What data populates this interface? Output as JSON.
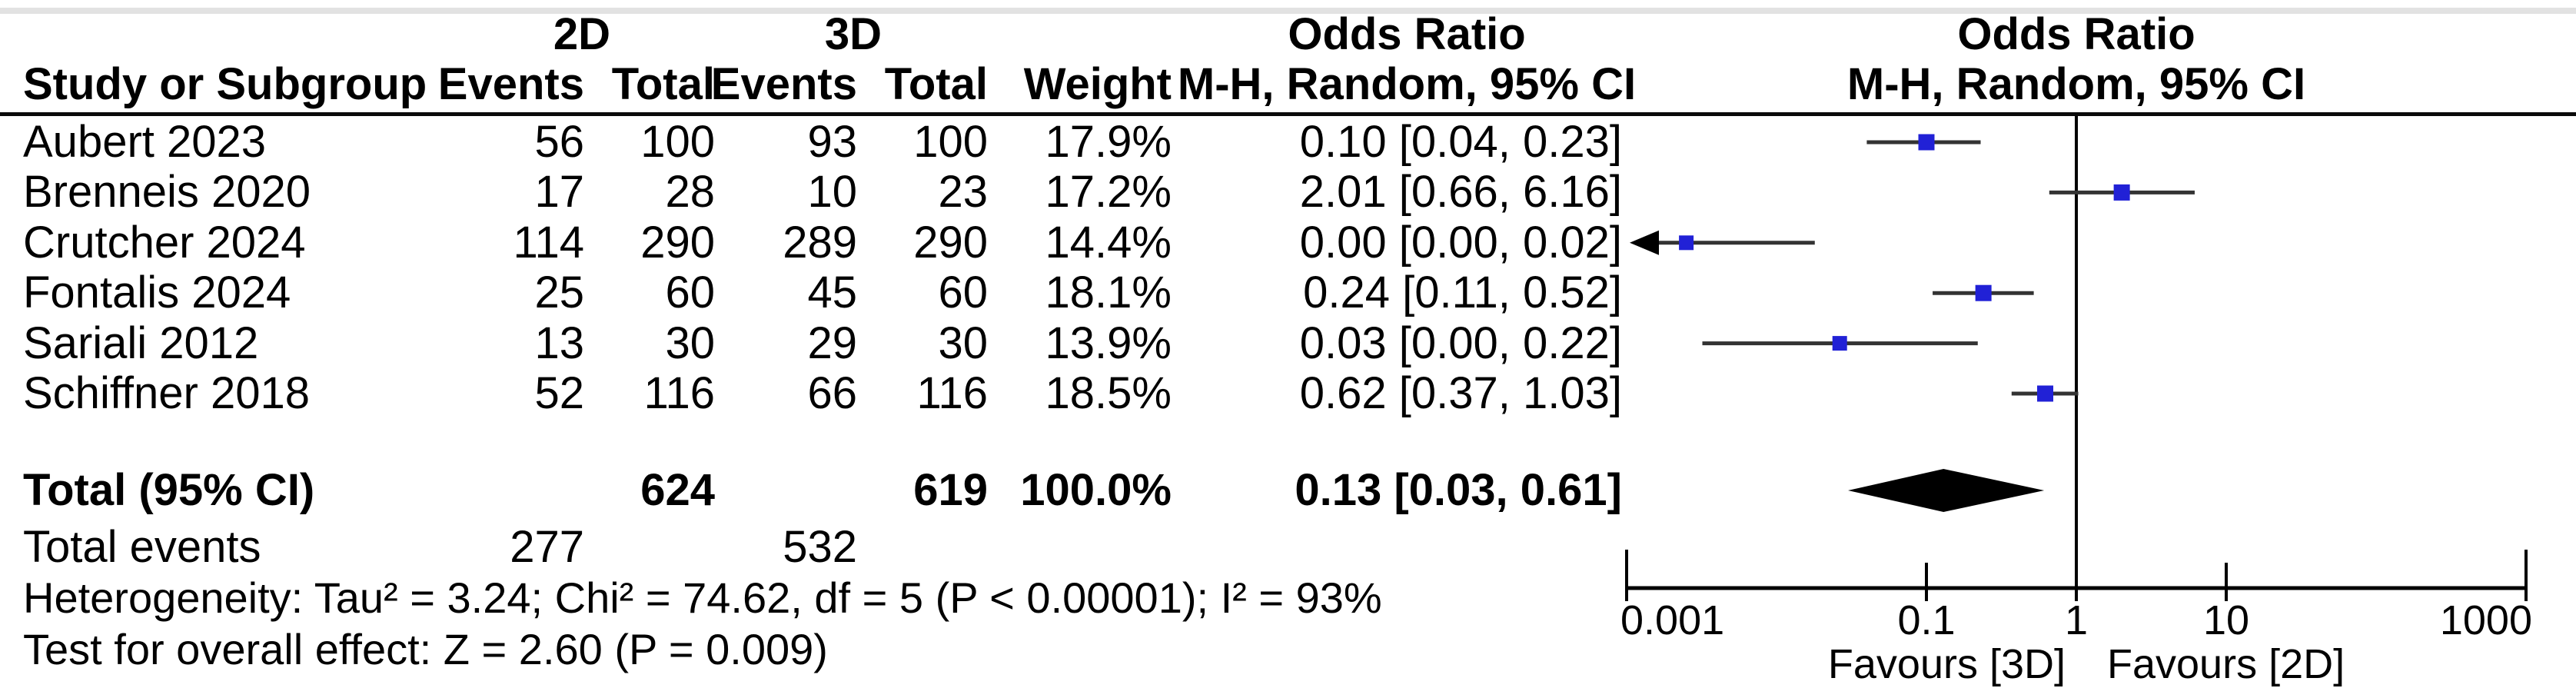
{
  "figure": {
    "headers": {
      "group_2d": "2D",
      "group_3d": "3D",
      "or_text_col_title": "Odds Ratio",
      "or_plot_col_title": "Odds Ratio",
      "study_col": "Study or Subgroup",
      "events_2d_col": "Events",
      "total_2d_col": "Total",
      "events_3d_col": "Events",
      "total_3d_col": "Total",
      "weight_col": "Weight",
      "or_text_method": "M-H, Random, 95% CI",
      "or_plot_method": "M-H, Random, 95% CI"
    },
    "totals": {
      "label": "Total (95% CI)",
      "total_2d": "624",
      "total_3d": "619",
      "weight": "100.0%",
      "or_ci_text": "0.13 [0.03, 0.61]",
      "events_label": "Total events",
      "events_2d": "277",
      "events_3d": "532"
    },
    "footer": {
      "heterogeneity": "Heterogeneity: Tau² = 3.24; Chi² = 74.62, df = 5 (P < 0.00001); I² = 93%",
      "overall_effect": "Test for overall effect: Z = 2.60 (P = 0.009)"
    }
  },
  "chart_data": {
    "type": "forest_plot",
    "effect_measure": "Odds Ratio",
    "method": "M-H, Random, 95% CI",
    "x_scale": "log",
    "axis": {
      "min": 0.001,
      "max": 1000,
      "ticks": [
        0.001,
        0.1,
        1,
        10,
        1000
      ],
      "tick_labels": [
        "0.001",
        "0.1",
        "1",
        "10",
        "1000"
      ],
      "null_line": 1,
      "favours_left": "Favours [3D]",
      "favours_right": "Favours [2D]"
    },
    "studies": [
      {
        "name": "Aubert 2023",
        "events_2d": "56",
        "total_2d": "100",
        "events_3d": "93",
        "total_3d": "100",
        "weight_pct": 17.9,
        "weight_text": "17.9%",
        "or_ci_text": "0.10 [0.04, 0.23]",
        "point": 0.1,
        "ci_low": 0.04,
        "ci_high": 0.23,
        "arrow_low": false
      },
      {
        "name": "Brenneis 2020",
        "events_2d": "17",
        "total_2d": "28",
        "events_3d": "10",
        "total_3d": "23",
        "weight_pct": 17.2,
        "weight_text": "17.2%",
        "or_ci_text": "2.01 [0.66, 6.16]",
        "point": 2.01,
        "ci_low": 0.66,
        "ci_high": 6.16,
        "arrow_low": false
      },
      {
        "name": "Crutcher 2024",
        "events_2d": "114",
        "total_2d": "290",
        "events_3d": "289",
        "total_3d": "290",
        "weight_pct": 14.4,
        "weight_text": "14.4%",
        "or_ci_text": "0.00 [0.00, 0.02]",
        "point": 0.0025,
        "ci_low": 0.0003,
        "ci_high": 0.018,
        "arrow_low": true
      },
      {
        "name": "Fontalis 2024",
        "events_2d": "25",
        "total_2d": "60",
        "events_3d": "45",
        "total_3d": "60",
        "weight_pct": 18.1,
        "weight_text": "18.1%",
        "or_ci_text": "0.24 [0.11, 0.52]",
        "point": 0.24,
        "ci_low": 0.11,
        "ci_high": 0.52,
        "arrow_low": false
      },
      {
        "name": "Sariali 2012",
        "events_2d": "13",
        "total_2d": "30",
        "events_3d": "29",
        "total_3d": "30",
        "weight_pct": 13.9,
        "weight_text": "13.9%",
        "or_ci_text": "0.03 [0.00, 0.22]",
        "point": 0.0264,
        "ci_low": 0.0032,
        "ci_high": 0.22,
        "arrow_low": false
      },
      {
        "name": "Schiffner 2018",
        "events_2d": "52",
        "total_2d": "116",
        "events_3d": "66",
        "total_3d": "116",
        "weight_pct": 18.5,
        "weight_text": "18.5%",
        "or_ci_text": "0.62 [0.37, 1.03]",
        "point": 0.62,
        "ci_low": 0.37,
        "ci_high": 1.03,
        "arrow_low": false
      }
    ],
    "total_diamond": {
      "point": 0.13,
      "ci_low": 0.03,
      "ci_high": 0.61
    },
    "colors": {
      "marker": "#2121d6",
      "ci_line": "#333333",
      "diamond": "#000000",
      "axis": "#000000",
      "top_border": "#e2e2e2"
    }
  }
}
